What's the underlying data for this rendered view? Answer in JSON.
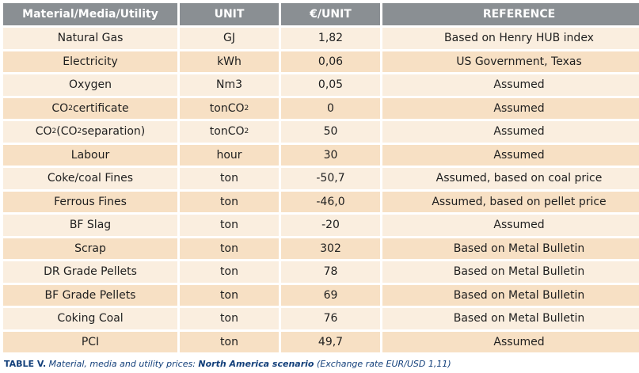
{
  "table": {
    "headers": [
      "Material/Media/Utility",
      "UNIT",
      "€/UNIT",
      "REFERENCE"
    ],
    "rows": [
      {
        "material": "Natural Gas",
        "unit": "GJ",
        "price": "1,82",
        "reference": "Based on Henry HUB index"
      },
      {
        "material": "Electricity",
        "unit": "kWh",
        "price": "0,06",
        "reference": "US Government, Texas"
      },
      {
        "material": "Oxygen",
        "unit": "Nm3",
        "price": "0,05",
        "reference": "Assumed"
      },
      {
        "material": "CO2 certificate",
        "unit": "tonCO2",
        "price": "0",
        "reference": "Assumed"
      },
      {
        "material": "CO2 (CO2 separation)",
        "unit": "tonCO2",
        "price": "50",
        "reference": "Assumed"
      },
      {
        "material": "Labour",
        "unit": "hour",
        "price": "30",
        "reference": "Assumed"
      },
      {
        "material": "Coke/coal Fines",
        "unit": "ton",
        "price": "-50,7",
        "reference": "Assumed, based on coal price"
      },
      {
        "material": "Ferrous Fines",
        "unit": "ton",
        "price": "-46,0",
        "reference": "Assumed, based on pellet price"
      },
      {
        "material": "BF Slag",
        "unit": "ton",
        "price": "-20",
        "reference": "Assumed"
      },
      {
        "material": "Scrap",
        "unit": "ton",
        "price": "302",
        "reference": "Based on Metal Bulletin"
      },
      {
        "material": "DR Grade Pellets",
        "unit": "ton",
        "price": "78",
        "reference": "Based on Metal Bulletin"
      },
      {
        "material": "BF Grade Pellets",
        "unit": "ton",
        "price": "69",
        "reference": "Based on Metal Bulletin"
      },
      {
        "material": "Coking Coal",
        "unit": "ton",
        "price": "76",
        "reference": "Based on Metal Bulletin"
      },
      {
        "material": "PCI",
        "unit": "ton",
        "price": "49,7",
        "reference": "Assumed"
      }
    ]
  },
  "caption": {
    "label": "TABLE V.",
    "text": " Material, media and utility prices: ",
    "scenario": "North America scenario",
    "note": " (Exchange rate EUR/USD 1,11)"
  },
  "colors": {
    "header_bg": "#8a8f93",
    "row_light": "#faeedf",
    "row_dark": "#f7e0c4",
    "caption": "#123f7a"
  }
}
